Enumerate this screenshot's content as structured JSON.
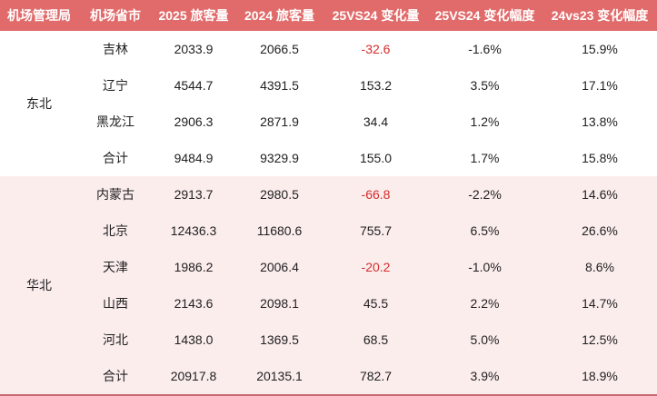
{
  "colors": {
    "header_bg": "#E16B6B",
    "header_text": "#FFFFFF",
    "section_huabei_bg": "#FCEDED",
    "body_text": "#1F1F1F",
    "negative_value": "#D42C2C",
    "bottom_border": "#C76A75"
  },
  "chart_data": {
    "type": "table",
    "columns": [
      "机场管理局",
      "机场省市",
      "2025 旅客量",
      "2024 旅客量",
      "25VS24 变化量",
      "25VS24 变化幅度",
      "24vs23 变化幅度"
    ],
    "groups": [
      {
        "region": "东北",
        "rows": [
          {
            "province": "吉林",
            "pax_2025": "2033.9",
            "pax_2024": "2066.5",
            "change": "-32.6",
            "pct_25v24": "-1.6%",
            "pct_24v23": "15.9%"
          },
          {
            "province": "辽宁",
            "pax_2025": "4544.7",
            "pax_2024": "4391.5",
            "change": "153.2",
            "pct_25v24": "3.5%",
            "pct_24v23": "17.1%"
          },
          {
            "province": "黑龙江",
            "pax_2025": "2906.3",
            "pax_2024": "2871.9",
            "change": "34.4",
            "pct_25v24": "1.2%",
            "pct_24v23": "13.8%"
          },
          {
            "province": "合计",
            "pax_2025": "9484.9",
            "pax_2024": "9329.9",
            "change": "155.0",
            "pct_25v24": "1.7%",
            "pct_24v23": "15.8%"
          }
        ]
      },
      {
        "region": "华北",
        "rows": [
          {
            "province": "内蒙古",
            "pax_2025": "2913.7",
            "pax_2024": "2980.5",
            "change": "-66.8",
            "pct_25v24": "-2.2%",
            "pct_24v23": "14.6%"
          },
          {
            "province": "北京",
            "pax_2025": "12436.3",
            "pax_2024": "11680.6",
            "change": "755.7",
            "pct_25v24": "6.5%",
            "pct_24v23": "26.6%"
          },
          {
            "province": "天津",
            "pax_2025": "1986.2",
            "pax_2024": "2006.4",
            "change": "-20.2",
            "pct_25v24": "-1.0%",
            "pct_24v23": "8.6%"
          },
          {
            "province": "山西",
            "pax_2025": "2143.6",
            "pax_2024": "2098.1",
            "change": "45.5",
            "pct_25v24": "2.2%",
            "pct_24v23": "14.7%"
          },
          {
            "province": "河北",
            "pax_2025": "1438.0",
            "pax_2024": "1369.5",
            "change": "68.5",
            "pct_25v24": "5.0%",
            "pct_24v23": "12.5%"
          },
          {
            "province": "合计",
            "pax_2025": "20917.8",
            "pax_2024": "20135.1",
            "change": "782.7",
            "pct_25v24": "3.9%",
            "pct_24v23": "18.9%"
          }
        ]
      }
    ]
  }
}
